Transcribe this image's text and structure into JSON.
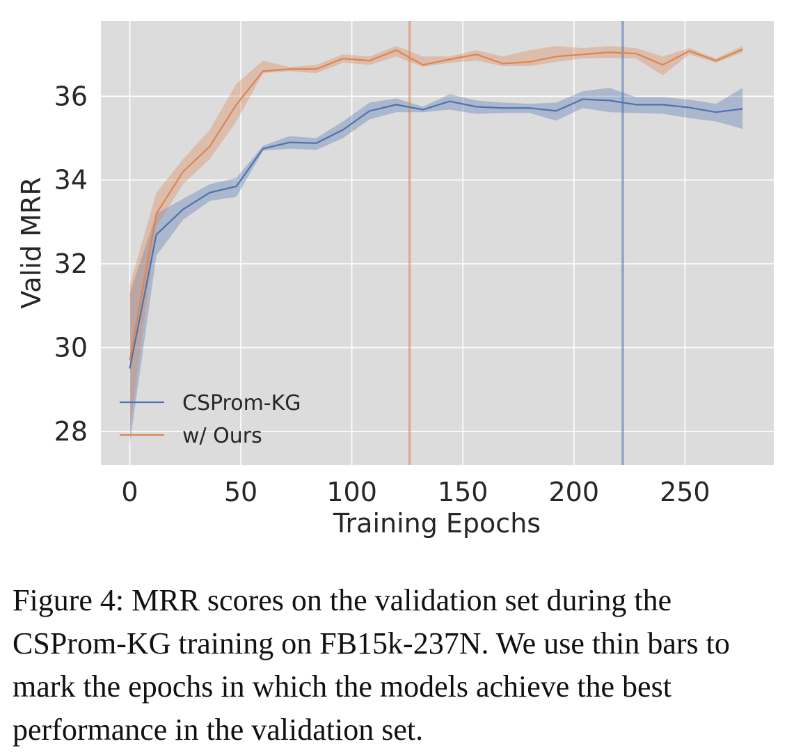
{
  "chart_data": {
    "type": "line",
    "xlabel": "Training Epochs",
    "ylabel": "Valid MRR",
    "xlim": [
      -13,
      290
    ],
    "ylim": [
      27.2,
      37.8
    ],
    "xticks": [
      0,
      50,
      100,
      150,
      200,
      250
    ],
    "yticks": [
      28,
      30,
      32,
      34,
      36
    ],
    "grid": true,
    "legend_position": "lower-left",
    "x": [
      0,
      12,
      24,
      36,
      48,
      60,
      72,
      84,
      96,
      108,
      120,
      132,
      144,
      156,
      168,
      180,
      192,
      204,
      216,
      228,
      240,
      252,
      264,
      276
    ],
    "series": [
      {
        "name": "CSProm-KG",
        "color": "#4c72b0",
        "values": [
          29.5,
          32.7,
          33.3,
          33.7,
          33.85,
          34.75,
          34.9,
          34.88,
          35.2,
          35.65,
          35.8,
          35.68,
          35.88,
          35.75,
          35.72,
          35.72,
          35.65,
          35.93,
          35.9,
          35.8,
          35.8,
          35.73,
          35.62,
          35.7
        ],
        "lower": [
          27.7,
          32.2,
          33.05,
          33.5,
          33.6,
          34.7,
          34.75,
          34.72,
          35.0,
          35.45,
          35.62,
          35.62,
          35.68,
          35.58,
          35.6,
          35.6,
          35.42,
          35.72,
          35.62,
          35.6,
          35.58,
          35.48,
          35.4,
          35.22
        ],
        "upper": [
          31.3,
          33.2,
          33.55,
          33.9,
          34.05,
          34.82,
          35.05,
          35.0,
          35.4,
          35.85,
          35.95,
          35.75,
          36.05,
          35.9,
          35.85,
          35.82,
          35.85,
          36.12,
          36.2,
          35.98,
          35.98,
          35.92,
          35.82,
          36.2
        ],
        "best_epoch": 222
      },
      {
        "name": "w/ Ours",
        "color": "#dd8452",
        "values": [
          29.7,
          33.2,
          34.2,
          34.8,
          35.8,
          36.6,
          36.65,
          36.65,
          36.9,
          36.85,
          37.1,
          36.75,
          36.88,
          37.0,
          36.78,
          36.82,
          36.95,
          37.0,
          37.05,
          37.02,
          36.75,
          37.08,
          36.85,
          37.12
        ],
        "lower": [
          28.0,
          32.9,
          33.9,
          34.5,
          35.4,
          36.55,
          36.6,
          36.55,
          36.8,
          36.75,
          36.95,
          36.7,
          36.8,
          36.85,
          36.72,
          36.72,
          36.82,
          36.9,
          36.92,
          36.9,
          36.5,
          37.0,
          36.8,
          37.05
        ],
        "upper": [
          31.5,
          33.7,
          34.5,
          35.2,
          36.3,
          36.85,
          36.7,
          36.75,
          37.0,
          36.95,
          37.2,
          36.95,
          36.95,
          37.1,
          36.95,
          37.1,
          37.2,
          37.15,
          37.2,
          37.15,
          36.95,
          37.15,
          36.9,
          37.2
        ],
        "best_epoch": 126
      }
    ]
  },
  "caption": "Figure 4: MRR scores on the validation set during the CSProm-KG training on FB15k-237N. We use thin bars to mark the epochs in which the models achieve the best performance in the validation set."
}
